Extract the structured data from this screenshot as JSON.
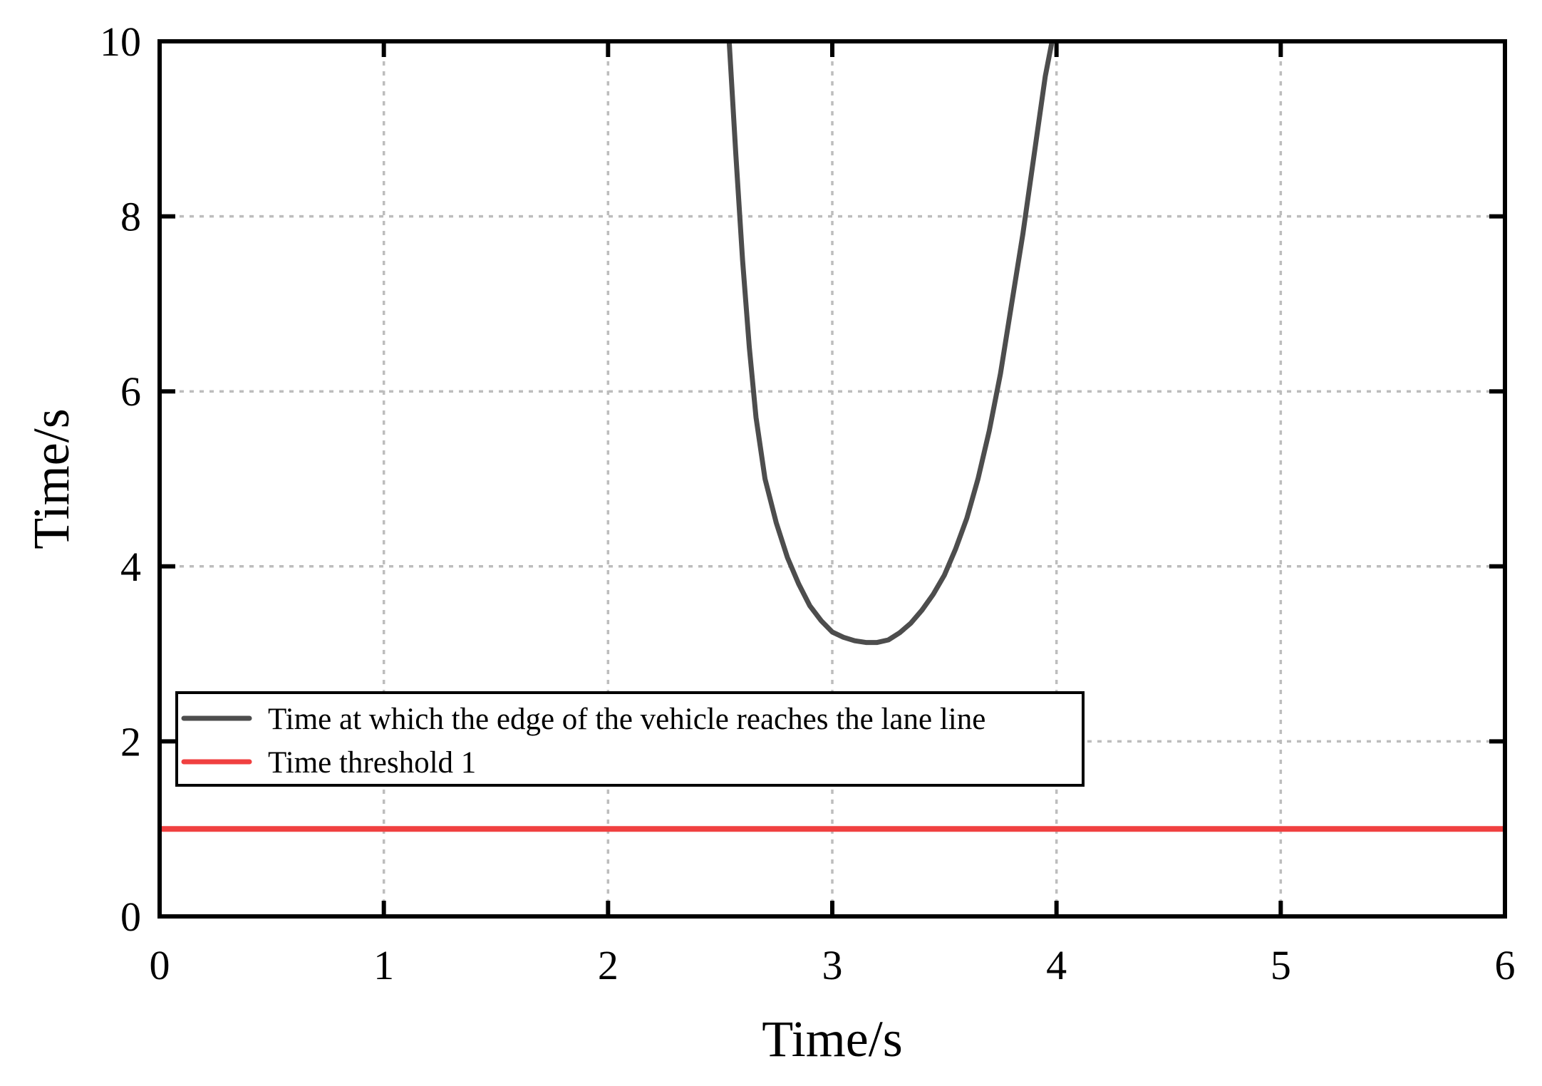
{
  "chart_data": {
    "type": "line",
    "xlabel": "Time/s",
    "ylabel": "Time/s",
    "xlim": [
      0,
      6
    ],
    "ylim": [
      0,
      10
    ],
    "xticks": [
      0,
      1,
      2,
      3,
      4,
      5,
      6
    ],
    "yticks": [
      0,
      2,
      4,
      6,
      8,
      10
    ],
    "grid": true,
    "legend_position": "lower-left",
    "series": [
      {
        "name": "Time at which the edge of the vehicle reaches the lane line",
        "color": "#4d4d4d",
        "x": [
          2.54,
          2.57,
          2.6,
          2.63,
          2.66,
          2.7,
          2.75,
          2.8,
          2.85,
          2.9,
          2.95,
          3.0,
          3.05,
          3.1,
          3.15,
          3.2,
          3.25,
          3.3,
          3.35,
          3.4,
          3.45,
          3.5,
          3.55,
          3.6,
          3.65,
          3.7,
          3.75,
          3.8,
          3.85,
          3.9,
          3.95,
          3.98
        ],
        "y": [
          10.0,
          8.7,
          7.5,
          6.5,
          5.7,
          5.0,
          4.5,
          4.1,
          3.8,
          3.55,
          3.38,
          3.25,
          3.19,
          3.15,
          3.13,
          3.13,
          3.16,
          3.24,
          3.35,
          3.5,
          3.68,
          3.9,
          4.2,
          4.55,
          5.0,
          5.55,
          6.2,
          7.0,
          7.8,
          8.7,
          9.6,
          10.0
        ]
      },
      {
        "name": "Time threshold 1",
        "color": "#f04040",
        "x": [
          0,
          6
        ],
        "y": [
          1,
          1
        ]
      }
    ]
  }
}
